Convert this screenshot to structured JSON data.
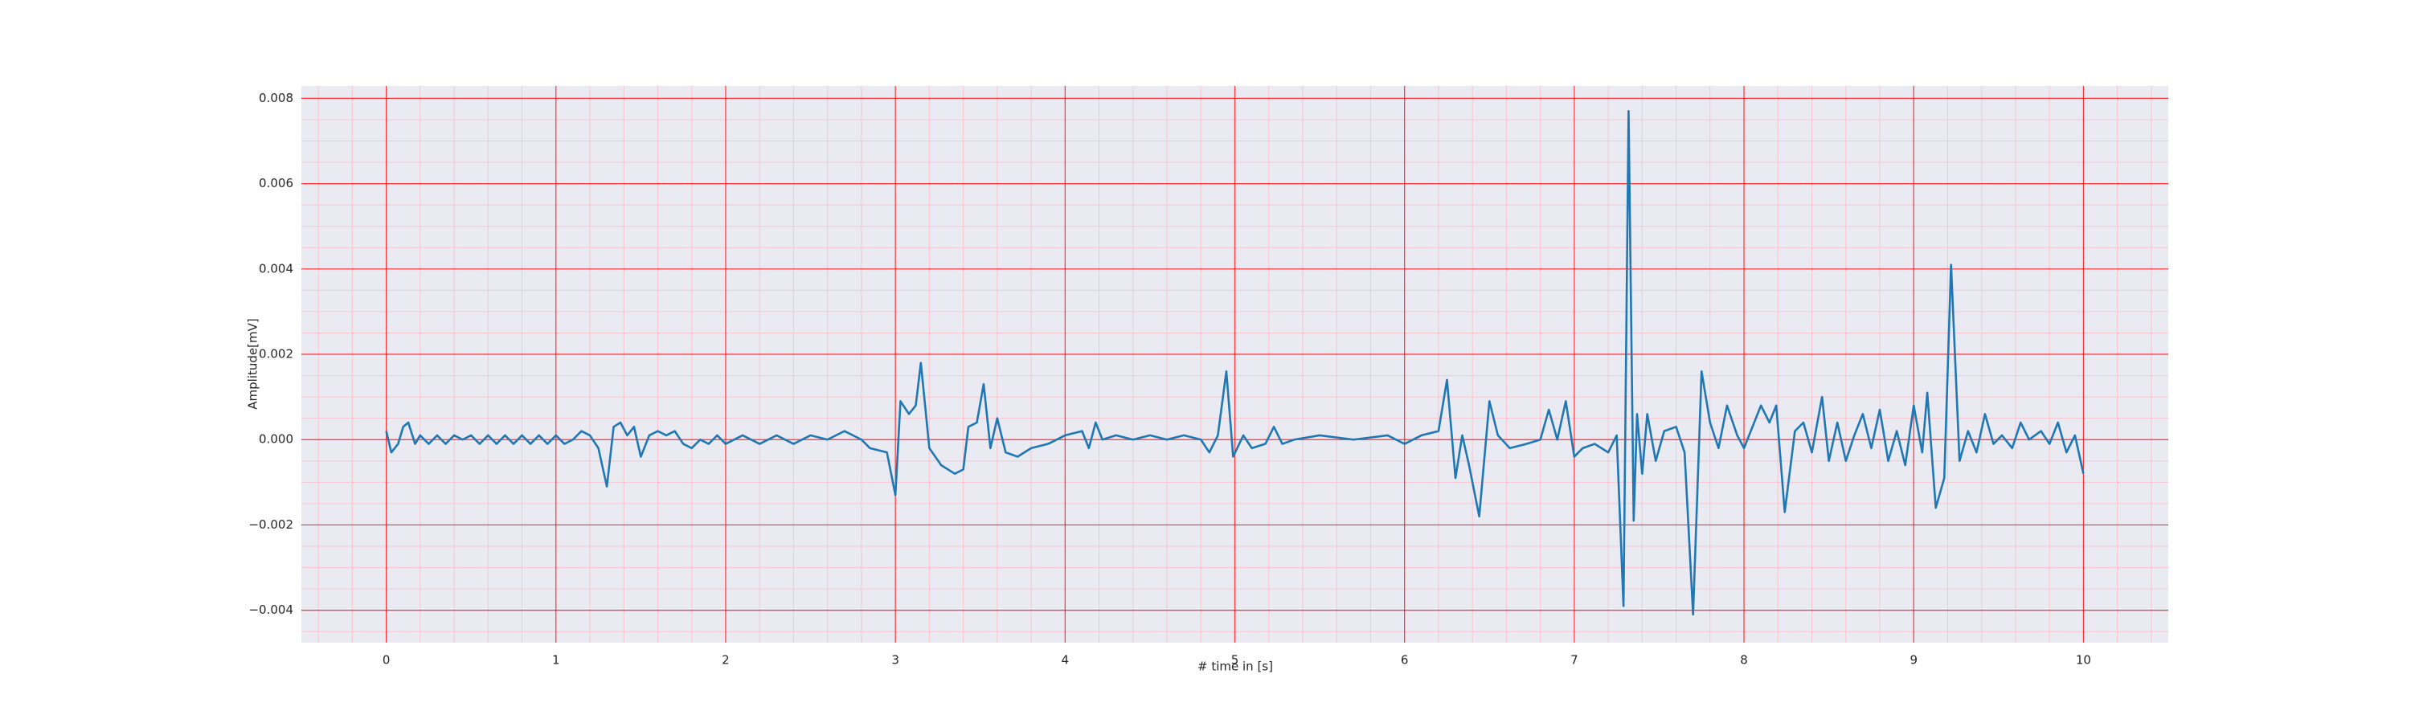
{
  "chart_data": {
    "type": "line",
    "xlabel": "# time in [s]",
    "ylabel": "Amplitude[mV]",
    "x": [
      0,
      0.03,
      0.07,
      0.1,
      0.13,
      0.17,
      0.2,
      0.25,
      0.3,
      0.35,
      0.4,
      0.45,
      0.5,
      0.55,
      0.6,
      0.65,
      0.7,
      0.75,
      0.8,
      0.85,
      0.9,
      0.95,
      1.0,
      1.05,
      1.1,
      1.15,
      1.2,
      1.25,
      1.3,
      1.34,
      1.38,
      1.42,
      1.46,
      1.5,
      1.55,
      1.6,
      1.65,
      1.7,
      1.75,
      1.8,
      1.85,
      1.9,
      1.95,
      2.0,
      2.1,
      2.2,
      2.3,
      2.4,
      2.5,
      2.6,
      2.7,
      2.8,
      2.85,
      2.95,
      3.0,
      3.03,
      3.08,
      3.12,
      3.15,
      3.2,
      3.27,
      3.35,
      3.4,
      3.43,
      3.48,
      3.52,
      3.56,
      3.6,
      3.65,
      3.72,
      3.8,
      3.9,
      4.0,
      4.1,
      4.14,
      4.18,
      4.22,
      4.3,
      4.4,
      4.5,
      4.6,
      4.7,
      4.8,
      4.85,
      4.9,
      4.95,
      4.99,
      5.05,
      5.1,
      5.18,
      5.23,
      5.28,
      5.35,
      5.5,
      5.7,
      5.9,
      6.0,
      6.1,
      6.2,
      6.25,
      6.3,
      6.34,
      6.38,
      6.44,
      6.5,
      6.55,
      6.62,
      6.72,
      6.8,
      6.85,
      6.9,
      6.95,
      7.0,
      7.05,
      7.12,
      7.2,
      7.25,
      7.29,
      7.32,
      7.35,
      7.37,
      7.4,
      7.43,
      7.48,
      7.53,
      7.6,
      7.65,
      7.7,
      7.75,
      7.8,
      7.85,
      7.9,
      7.96,
      8.0,
      8.05,
      8.1,
      8.15,
      8.19,
      8.24,
      8.3,
      8.35,
      8.4,
      8.46,
      8.5,
      8.55,
      8.6,
      8.65,
      8.7,
      8.75,
      8.8,
      8.85,
      8.9,
      8.95,
      9.0,
      9.05,
      9.08,
      9.13,
      9.18,
      9.22,
      9.27,
      9.32,
      9.37,
      9.42,
      9.47,
      9.52,
      9.58,
      9.63,
      9.68,
      9.75,
      9.8,
      9.85,
      9.9,
      9.95,
      10.0
    ],
    "values": [
      0.0002,
      -0.0003,
      -0.0001,
      0.0003,
      0.0004,
      -0.0001,
      0.0001,
      -0.0001,
      0.0001,
      -0.0001,
      0.0001,
      0,
      0.0001,
      -0.0001,
      0.0001,
      -0.0001,
      0.0001,
      -0.0001,
      0.0001,
      -0.0001,
      0.0001,
      -0.0001,
      0.0001,
      -0.0001,
      0,
      0.0002,
      0.0001,
      -0.0002,
      -0.0011,
      0.0003,
      0.0004,
      0.0001,
      0.0003,
      -0.0004,
      0.0001,
      0.0002,
      0.0001,
      0.0002,
      -0.0001,
      -0.0002,
      0,
      -0.0001,
      0.0001,
      -0.0001,
      0.0001,
      -0.0001,
      0.0001,
      -0.0001,
      0.0001,
      0,
      0.0002,
      0,
      -0.0002,
      -0.0003,
      -0.0013,
      0.0009,
      0.0006,
      0.0008,
      0.0018,
      -0.0002,
      -0.0006,
      -0.0008,
      -0.0007,
      0.0003,
      0.0004,
      0.0013,
      -0.0002,
      0.0005,
      -0.0003,
      -0.0004,
      -0.0002,
      -0.0001,
      0.0001,
      0.0002,
      -0.0002,
      0.0004,
      0,
      0.0001,
      0,
      0.0001,
      0,
      0.0001,
      0,
      -0.0003,
      0.0001,
      0.0016,
      -0.0004,
      0.0001,
      -0.0002,
      -0.0001,
      0.0003,
      -0.0001,
      0,
      0.0001,
      0,
      0.0001,
      -0.0001,
      0.0001,
      0.0002,
      0.0014,
      -0.0009,
      0.0001,
      -0.0006,
      -0.0018,
      0.0009,
      0.0001,
      -0.0002,
      -0.0001,
      0,
      0.0007,
      0,
      0.0009,
      -0.0004,
      -0.0002,
      -0.0001,
      -0.0003,
      0.0001,
      -0.0039,
      0.0077,
      -0.0019,
      0.0006,
      -0.0008,
      0.0006,
      -0.0005,
      0.0002,
      0.0003,
      -0.0003,
      -0.0041,
      0.0016,
      0.0004,
      -0.0002,
      0.0008,
      0.0001,
      -0.0002,
      0.0003,
      0.0008,
      0.0004,
      0.0008,
      -0.0017,
      0.0002,
      0.0004,
      -0.0003,
      0.001,
      -0.0005,
      0.0004,
      -0.0005,
      0.0001,
      0.0006,
      -0.0002,
      0.0007,
      -0.0005,
      0.0002,
      -0.0006,
      0.0008,
      -0.0003,
      0.0011,
      -0.0016,
      -0.0009,
      0.0041,
      -0.0005,
      0.0002,
      -0.0003,
      0.0006,
      -0.0001,
      0.0001,
      -0.0002,
      0.0004,
      0,
      0.0002,
      -0.0001,
      0.0004,
      -0.0003,
      0.0001,
      -0.0008
    ],
    "color": "#1f77b4",
    "xlim": [
      -0.5,
      10.5
    ],
    "xticks": [
      0,
      1,
      2,
      3,
      4,
      5,
      6,
      7,
      8,
      9,
      10
    ],
    "ylim": [
      -0.00476,
      0.00829
    ],
    "yticks": [
      {
        "value": -0.004,
        "label": "−0.004"
      },
      {
        "value": -0.002,
        "label": "−0.002"
      },
      {
        "value": 0,
        "label": "0.000"
      },
      0.002,
      0.004,
      0.006,
      0.008
    ],
    "grid": true,
    "minor_grid": true
  }
}
